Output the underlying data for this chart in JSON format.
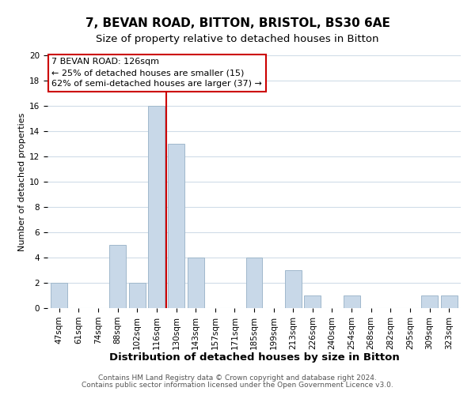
{
  "title": "7, BEVAN ROAD, BITTON, BRISTOL, BS30 6AE",
  "subtitle": "Size of property relative to detached houses in Bitton",
  "xlabel": "Distribution of detached houses by size in Bitton",
  "ylabel": "Number of detached properties",
  "bar_labels": [
    "47sqm",
    "61sqm",
    "74sqm",
    "88sqm",
    "102sqm",
    "116sqm",
    "130sqm",
    "143sqm",
    "157sqm",
    "171sqm",
    "185sqm",
    "199sqm",
    "213sqm",
    "226sqm",
    "240sqm",
    "254sqm",
    "268sqm",
    "282sqm",
    "295sqm",
    "309sqm",
    "323sqm"
  ],
  "bar_values": [
    2,
    0,
    0,
    5,
    2,
    16,
    13,
    4,
    0,
    0,
    4,
    0,
    3,
    1,
    0,
    1,
    0,
    0,
    0,
    1,
    1
  ],
  "bar_color": "#c8d8e8",
  "bar_edge_color": "#a0b8cc",
  "vline_x": 5.5,
  "vline_color": "#cc0000",
  "ylim": [
    0,
    20
  ],
  "yticks": [
    0,
    2,
    4,
    6,
    8,
    10,
    12,
    14,
    16,
    18,
    20
  ],
  "annotation_title": "7 BEVAN ROAD: 126sqm",
  "annotation_line1": "← 25% of detached houses are smaller (15)",
  "annotation_line2": "62% of semi-detached houses are larger (37) →",
  "annotation_box_color": "white",
  "annotation_box_edge": "#cc0000",
  "footer1": "Contains HM Land Registry data © Crown copyright and database right 2024.",
  "footer2": "Contains public sector information licensed under the Open Government Licence v3.0.",
  "bg_color": "white",
  "grid_color": "#d0dce8",
  "title_fontsize": 11,
  "subtitle_fontsize": 9.5,
  "xlabel_fontsize": 9.5,
  "ylabel_fontsize": 8,
  "tick_fontsize": 7.5,
  "ann_fontsize": 8,
  "footer_fontsize": 6.5
}
